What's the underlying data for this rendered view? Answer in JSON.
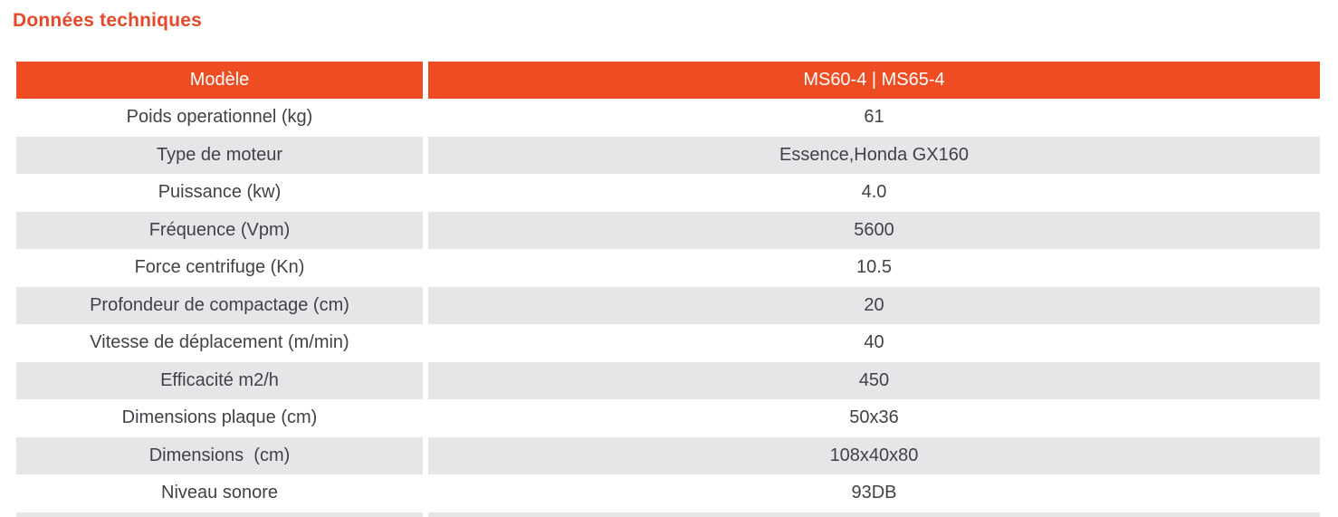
{
  "title": "Données techniques",
  "colors": {
    "title_orange": "#E5492B",
    "header_orange": "#EE4D23",
    "header_text": "#ffffff",
    "row_alt_gray": "#E6E6E8",
    "body_text": "#414247"
  },
  "table": {
    "header": {
      "model_label": "Modèle",
      "model_value": "MS60-4 | MS65-4"
    },
    "rows": [
      {
        "label": "Poids operationnel (kg)",
        "value": "61"
      },
      {
        "label": "Type de moteur",
        "value": "Essence,Honda GX160"
      },
      {
        "label": "Puissance (kw)",
        "value": "4.0"
      },
      {
        "label": "Fréquence (Vpm)",
        "value": "5600"
      },
      {
        "label": "Force centrifuge (Kn)",
        "value": "10.5"
      },
      {
        "label": "Profondeur de compactage (cm)",
        "value": "20"
      },
      {
        "label": "Vitesse de déplacement (m/min)",
        "value": "40"
      },
      {
        "label": "Efficacité m2/h",
        "value": "450"
      },
      {
        "label": "Dimensions plaque (cm)",
        "value": "50x36"
      },
      {
        "label": "Dimensions  (cm)",
        "value": "108x40x80"
      },
      {
        "label": "Niveau sonore",
        "value": "93DB"
      }
    ]
  }
}
